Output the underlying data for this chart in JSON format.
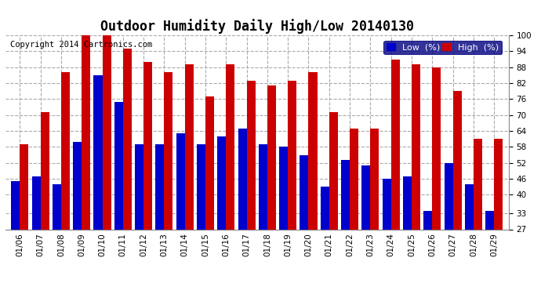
{
  "title": "Outdoor Humidity Daily High/Low 20140130",
  "copyright": "Copyright 2014 Cartronics.com",
  "dates": [
    "01/06",
    "01/07",
    "01/08",
    "01/09",
    "01/10",
    "01/11",
    "01/12",
    "01/13",
    "01/14",
    "01/15",
    "01/16",
    "01/17",
    "01/18",
    "01/19",
    "01/20",
    "01/21",
    "01/22",
    "01/23",
    "01/24",
    "01/25",
    "01/26",
    "01/27",
    "01/28",
    "01/29"
  ],
  "high": [
    59,
    71,
    86,
    100,
    100,
    95,
    90,
    86,
    89,
    77,
    89,
    83,
    81,
    83,
    86,
    71,
    65,
    65,
    91,
    89,
    88,
    79,
    61,
    61
  ],
  "low": [
    45,
    47,
    44,
    60,
    85,
    75,
    59,
    59,
    63,
    59,
    62,
    65,
    59,
    58,
    55,
    43,
    53,
    51,
    46,
    47,
    34,
    52,
    44,
    34
  ],
  "ylim": [
    27,
    100
  ],
  "yticks": [
    27,
    33,
    40,
    46,
    52,
    58,
    64,
    70,
    76,
    82,
    88,
    94,
    100
  ],
  "bar_width": 0.42,
  "color_low": "#0000cc",
  "color_high": "#cc0000",
  "background_color": "#ffffff",
  "grid_color": "#aaaaaa",
  "title_fontsize": 12,
  "copyright_fontsize": 7.5,
  "tick_fontsize": 7.5,
  "legend_fontsize": 8
}
